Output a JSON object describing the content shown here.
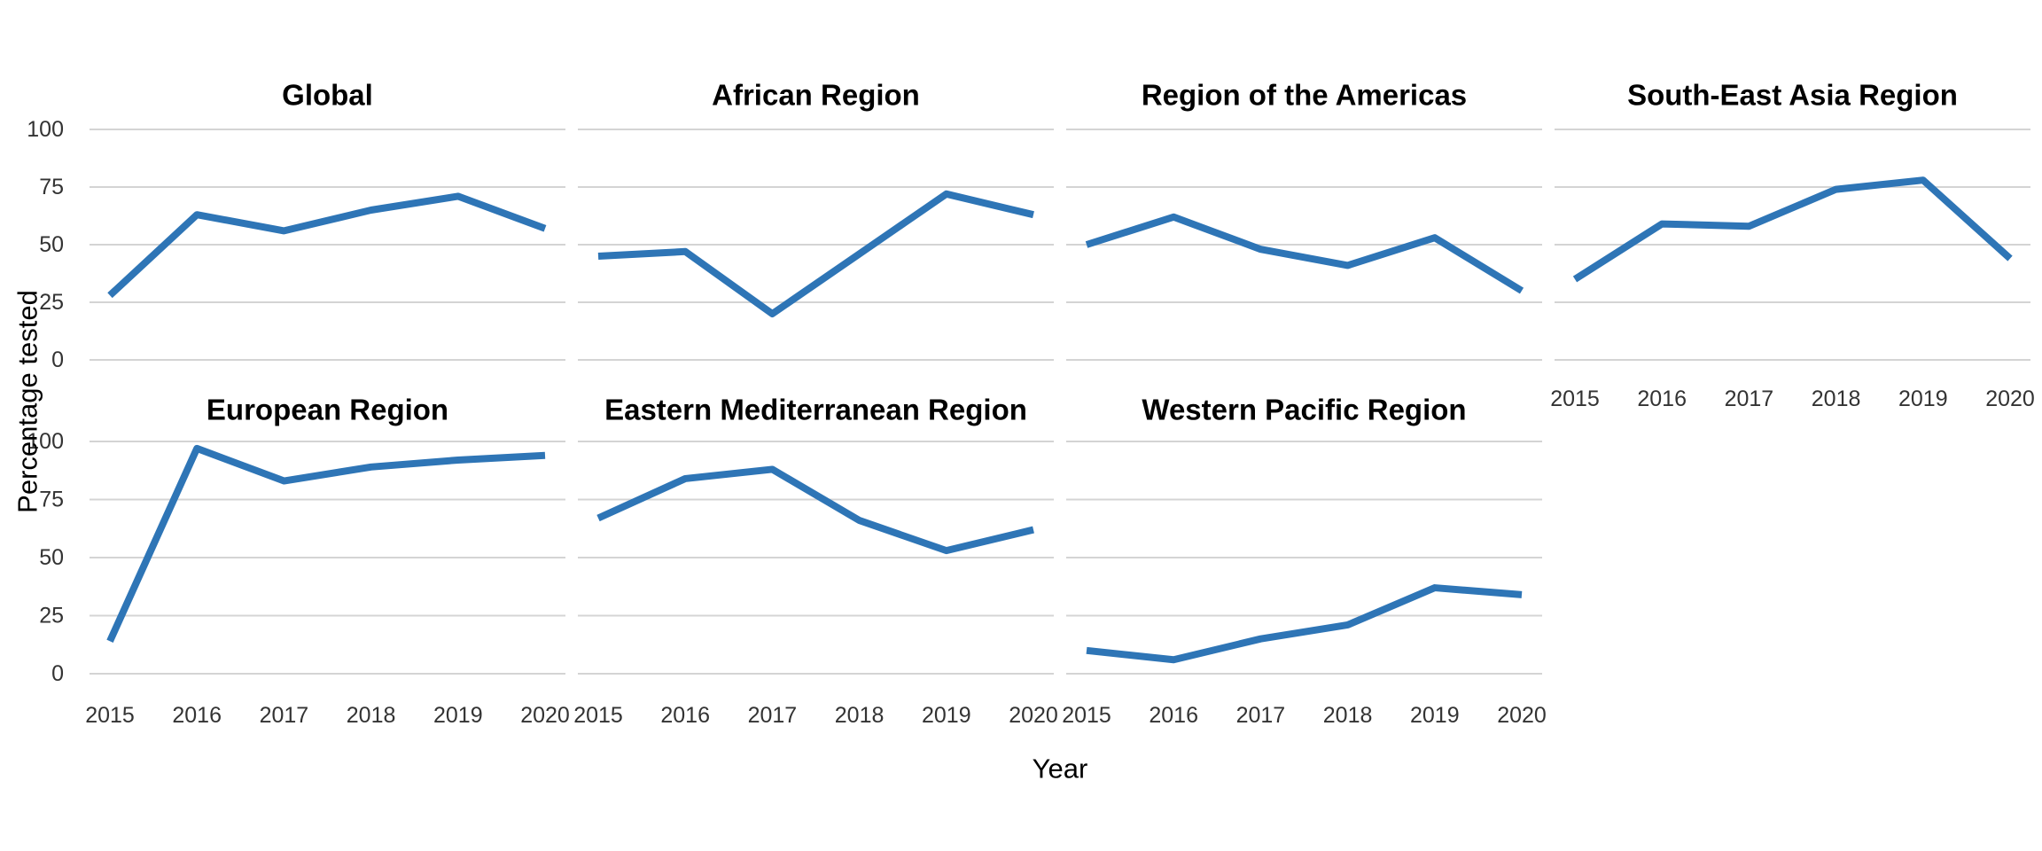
{
  "chart_data": {
    "type": "line",
    "x": [
      2015,
      2016,
      2017,
      2018,
      2019,
      2020
    ],
    "xlabel": "Year",
    "ylabel": "Percentage tested",
    "y_ticks": [
      0,
      25,
      50,
      75,
      100
    ],
    "ylim": [
      0,
      100
    ],
    "grid": "horizontal-major-only",
    "legend": "none",
    "facet_layout": {
      "rows": 2,
      "cols": 4
    },
    "facets": [
      {
        "title": "Global",
        "row": 0,
        "col": 0,
        "values": [
          28,
          63,
          56,
          65,
          71,
          57
        ]
      },
      {
        "title": "African Region",
        "row": 0,
        "col": 1,
        "values": [
          45,
          47,
          20,
          46,
          72,
          63
        ]
      },
      {
        "title": "Region of the Americas",
        "row": 0,
        "col": 2,
        "values": [
          50,
          62,
          48,
          41,
          53,
          30
        ]
      },
      {
        "title": "South-East Asia Region",
        "row": 0,
        "col": 3,
        "values": [
          35,
          59,
          58,
          74,
          78,
          44
        ]
      },
      {
        "title": "European Region",
        "row": 1,
        "col": 0,
        "values": [
          14,
          97,
          83,
          89,
          92,
          94
        ]
      },
      {
        "title": "Eastern Mediterranean Region",
        "row": 1,
        "col": 1,
        "values": [
          67,
          84,
          88,
          66,
          53,
          62
        ]
      },
      {
        "title": "Western Pacific Region",
        "row": 1,
        "col": 2,
        "values": [
          10,
          6,
          15,
          21,
          37,
          34
        ]
      }
    ],
    "colors": {
      "line": "#2E75B6",
      "grid": "#D4D4D4",
      "tick_text": "#333333",
      "title_text": "#000000"
    }
  }
}
